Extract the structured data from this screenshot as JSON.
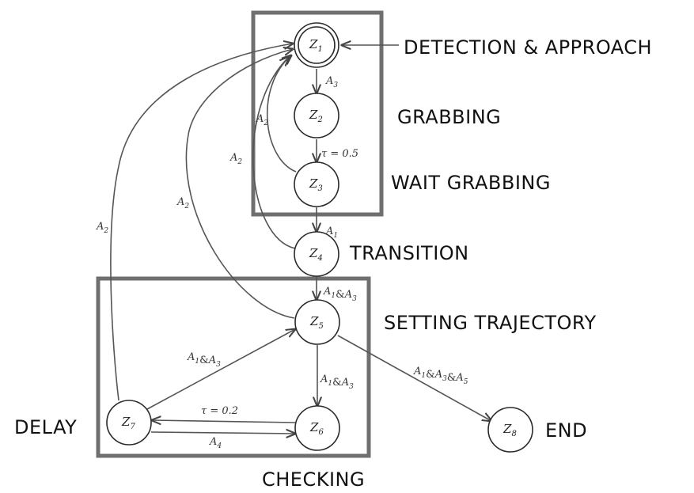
{
  "states": [
    {
      "id": "Z1",
      "letter": "Z",
      "sub": "1",
      "accepting": true
    },
    {
      "id": "Z2",
      "letter": "Z",
      "sub": "2"
    },
    {
      "id": "Z3",
      "letter": "Z",
      "sub": "3"
    },
    {
      "id": "Z4",
      "letter": "Z",
      "sub": "4"
    },
    {
      "id": "Z5",
      "letter": "Z",
      "sub": "5"
    },
    {
      "id": "Z6",
      "letter": "Z",
      "sub": "6"
    },
    {
      "id": "Z7",
      "letter": "Z",
      "sub": "7"
    },
    {
      "id": "Z8",
      "letter": "Z",
      "sub": "8"
    }
  ],
  "captions": {
    "detection": "DETECTION & APPROACH",
    "grabbing": "GRABBING",
    "wait_grabbing": "WAIT GRABBING",
    "transition": "TRANSITION",
    "setting_trajectory": "SETTING TRAJECTORY",
    "delay": "DELAY",
    "end": "END",
    "checking": "CHECKING"
  },
  "edges": [
    {
      "id": "z1-z2",
      "from": "Z1",
      "to": "Z2",
      "label": [
        [
          "A",
          "3"
        ]
      ]
    },
    {
      "id": "z2-z3",
      "from": "Z2",
      "to": "Z3",
      "label_text": "τ = 0.5"
    },
    {
      "id": "z3-z1",
      "from": "Z3",
      "to": "Z1",
      "label": [
        [
          "A",
          "2"
        ]
      ]
    },
    {
      "id": "z3-z4",
      "from": "Z3",
      "to": "Z4",
      "label": [
        [
          "A",
          "1"
        ]
      ]
    },
    {
      "id": "z4-z1",
      "from": "Z4",
      "to": "Z1",
      "label": [
        [
          "A",
          "2"
        ]
      ]
    },
    {
      "id": "z4-z5",
      "from": "Z4",
      "to": "Z5",
      "label": [
        [
          "A",
          "1"
        ],
        [
          "&",
          ""
        ],
        [
          "A",
          "3"
        ]
      ]
    },
    {
      "id": "z5-z1",
      "from": "Z5",
      "to": "Z1",
      "label": [
        [
          "A",
          "2"
        ]
      ]
    },
    {
      "id": "z5-z6",
      "from": "Z5",
      "to": "Z6",
      "label": [
        [
          "A",
          "1"
        ],
        [
          "&",
          ""
        ],
        [
          "A",
          "3"
        ]
      ]
    },
    {
      "id": "z5-z8",
      "from": "Z5",
      "to": "Z8",
      "label": [
        [
          "A",
          "1"
        ],
        [
          "&",
          ""
        ],
        [
          "A",
          "3"
        ],
        [
          "&",
          ""
        ],
        [
          "A",
          "5"
        ]
      ]
    },
    {
      "id": "z6-z7",
      "from": "Z6",
      "to": "Z7",
      "label_text": "τ = 0.2"
    },
    {
      "id": "z7-z6",
      "from": "Z7",
      "to": "Z6",
      "label": [
        [
          "A",
          "4"
        ]
      ]
    },
    {
      "id": "z7-z5",
      "from": "Z7",
      "to": "Z5",
      "label": [
        [
          "A",
          "1"
        ],
        [
          "&",
          ""
        ],
        [
          "A",
          "3"
        ]
      ]
    },
    {
      "id": "z7-z1",
      "from": "Z7",
      "to": "Z1",
      "label": [
        [
          "A",
          "2"
        ]
      ]
    },
    {
      "id": "entry",
      "from": "",
      "to": "Z1"
    }
  ]
}
